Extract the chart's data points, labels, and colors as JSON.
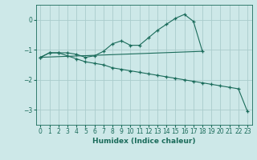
{
  "xlabel": "Humidex (Indice chaleur)",
  "background_color": "#cde8e8",
  "grid_color": "#aacccc",
  "line_color": "#1a6b5a",
  "xlim": [
    -0.5,
    23.5
  ],
  "ylim": [
    -3.5,
    0.5
  ],
  "yticks": [
    0,
    -1,
    -2,
    -3
  ],
  "xticks": [
    0,
    1,
    2,
    3,
    4,
    5,
    6,
    7,
    8,
    9,
    10,
    11,
    12,
    13,
    14,
    15,
    16,
    17,
    18,
    19,
    20,
    21,
    22,
    23
  ],
  "series1_x": [
    0,
    1,
    2,
    3,
    4,
    5,
    6,
    7,
    8,
    9,
    10,
    11,
    12,
    13,
    14,
    15,
    16,
    17,
    18
  ],
  "series1_y": [
    -1.25,
    -1.1,
    -1.1,
    -1.1,
    -1.15,
    -1.25,
    -1.2,
    -1.05,
    -0.8,
    -0.7,
    -0.85,
    -0.85,
    -0.6,
    -0.35,
    -0.15,
    0.05,
    0.18,
    -0.05,
    -1.05
  ],
  "series2_x": [
    0,
    18
  ],
  "series2_y": [
    -1.25,
    -1.05
  ],
  "series3_x": [
    0,
    1,
    2,
    3,
    4,
    5,
    6,
    7,
    8,
    9,
    10,
    11,
    12,
    13,
    14,
    15,
    16,
    17,
    18,
    19,
    20,
    21,
    22,
    23
  ],
  "series3_y": [
    -1.25,
    -1.1,
    -1.1,
    -1.2,
    -1.3,
    -1.4,
    -1.45,
    -1.5,
    -1.6,
    -1.65,
    -1.7,
    -1.75,
    -1.8,
    -1.85,
    -1.9,
    -1.95,
    -2.0,
    -2.05,
    -2.1,
    -2.15,
    -2.2,
    -2.25,
    -2.3,
    -3.05
  ]
}
